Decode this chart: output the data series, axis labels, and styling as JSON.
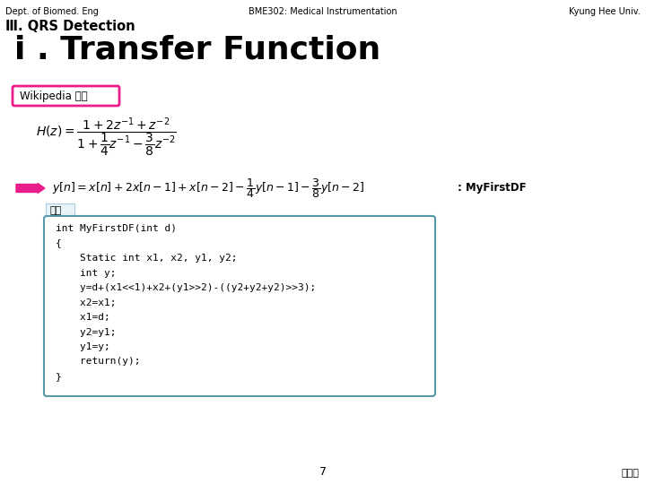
{
  "header_left": "Dept. of Biomed. Eng",
  "header_center": "BME302: Medical Instrumentation",
  "header_right": "Kyung Hee Univ.",
  "section_title": "Ⅲ. QRS Detection",
  "slide_title": "i . Transfer Function",
  "wikipedia_label": "Wikipedia 예제",
  "diff_eq_label": ": MyFirstDF",
  "coding_label": "코딩",
  "code_lines": [
    "int MyFirstDF(int d)",
    "{",
    "    Static int x1, x2, y1, y2;",
    "    int y;",
    "    y=d+(x1<<1)+x2+(y1>>2)-((y2+y2+y2)>>3);",
    "    x2=x1;",
    "    x1=d;",
    "    y2=y1;",
    "    y1=y;",
    "    return(y);",
    "}"
  ],
  "page_number": "7",
  "author": "김소연",
  "bg_color": "#ffffff",
  "wikipedia_box_color": "#e91e8c",
  "code_box_color": "#5599aa",
  "code_bg_color": "#ffffff",
  "arrow_color": "#e91e8c",
  "coding_box_color": "#aaccdd",
  "coding_bg_color": "#e8f4f8"
}
